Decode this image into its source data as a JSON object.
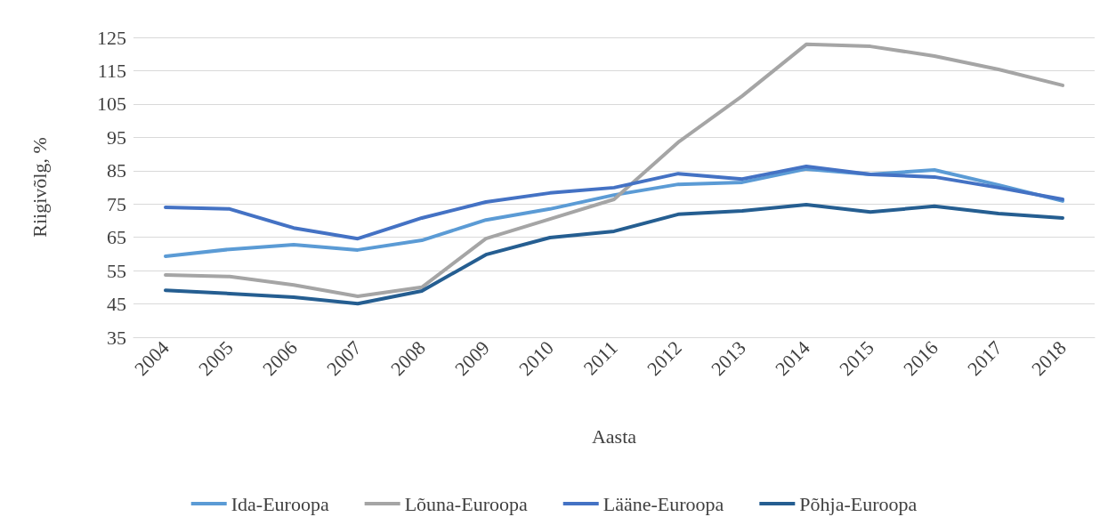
{
  "chart_data": {
    "type": "line",
    "xlabel": "Aasta",
    "ylabel": "Riigivõlg, %",
    "categories": [
      "2004",
      "2005",
      "2006",
      "2007",
      "2008",
      "2009",
      "2010",
      "2011",
      "2012",
      "2013",
      "2014",
      "2015",
      "2016",
      "2017",
      "2018"
    ],
    "series": [
      {
        "name": "Ida-Euroopa",
        "color": "#5b9bd5",
        "values": [
          59.3,
          61.4,
          62.8,
          61.2,
          64.1,
          70.2,
          73.5,
          77.7,
          80.9,
          81.5,
          85.5,
          83.9,
          85.2,
          80.7,
          75.9
        ]
      },
      {
        "name": "Lõuna-Euroopa",
        "color": "#a5a5a5",
        "values": [
          53.7,
          53.2,
          50.7,
          47.3,
          50,
          64.6,
          70.5,
          76.4,
          93.5,
          107.4,
          122.9,
          122.3,
          119.4,
          115.4,
          110.6
        ]
      },
      {
        "name": "Lääne-Euroopa",
        "color": "#4472c4",
        "values": [
          74,
          73.5,
          67.8,
          64.6,
          70.8,
          75.6,
          78.3,
          79.9,
          84.1,
          82.5,
          86.3,
          83.9,
          83.1,
          79.9,
          76.4
        ]
      },
      {
        "name": "Põhja-Euroopa",
        "color": "#255e91",
        "values": [
          49.1,
          48.1,
          47,
          45.1,
          48.9,
          59.8,
          64.9,
          66.8,
          71.9,
          72.9,
          74.8,
          72.6,
          74.3,
          72.1,
          70.8
        ]
      }
    ],
    "ylim": [
      35,
      125
    ],
    "yticks": [
      35,
      45,
      55,
      65,
      75,
      85,
      95,
      105,
      115,
      125
    ],
    "grid": "y",
    "legend": "bottom",
    "marker": "none",
    "line_style": "solid"
  }
}
